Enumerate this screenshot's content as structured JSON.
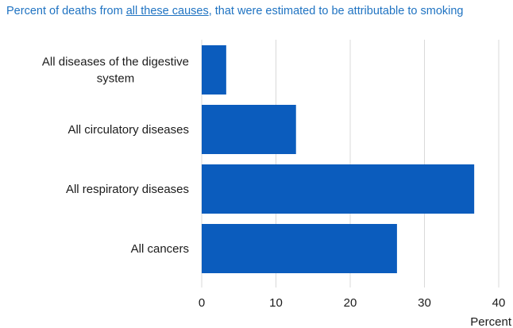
{
  "title": {
    "prefix": "Percent of deaths from ",
    "link_text": "all these causes",
    "suffix": ", that were estimated to be attributable to smoking"
  },
  "colors": {
    "bar": "#0b5cbd",
    "title": "#1f73c2",
    "grid": "#d9d9d9"
  },
  "chart_data": {
    "type": "bar",
    "orientation": "horizontal",
    "categories": [
      [
        "All diseases of the digestive",
        "system"
      ],
      [
        "All circulatory diseases"
      ],
      [
        "All respiratory diseases"
      ],
      [
        "All cancers"
      ]
    ],
    "values": [
      3.3,
      12.7,
      36.7,
      26.3
    ],
    "xlabel": "Percent",
    "xlim": [
      0,
      40
    ],
    "xticks": [
      "0",
      "10",
      "20",
      "30",
      "40"
    ],
    "grid": true
  }
}
